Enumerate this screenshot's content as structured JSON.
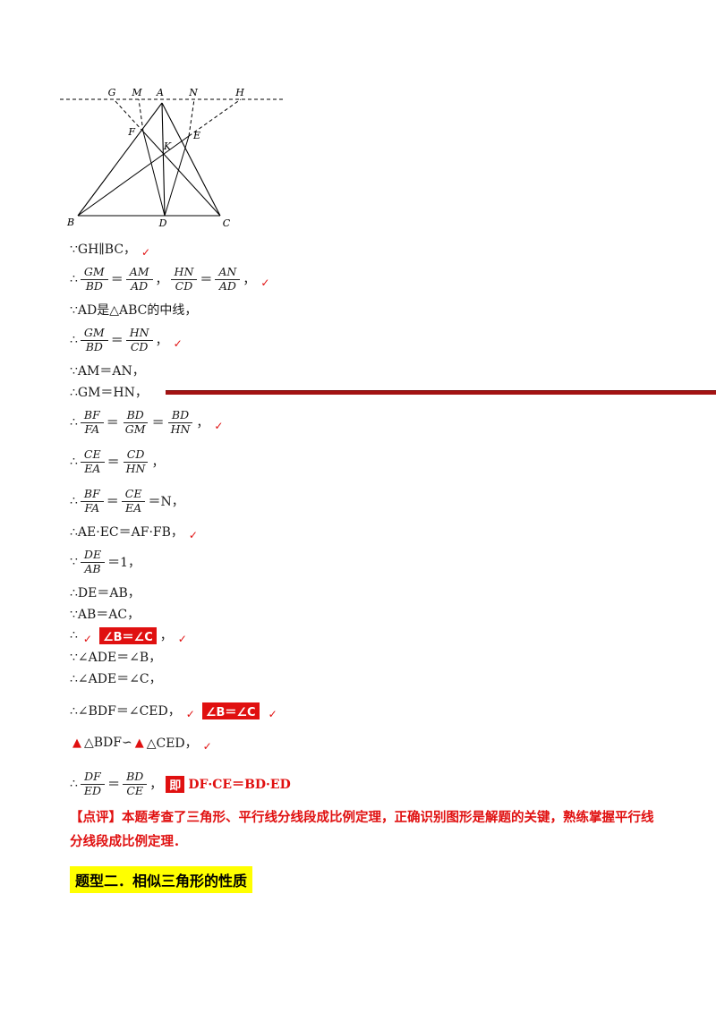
{
  "figure": {
    "labels": {
      "g": "G",
      "m": "M",
      "a": "A",
      "n": "N",
      "h": "H",
      "f": "F",
      "k": "K",
      "e": "E",
      "b": "B",
      "d": "D",
      "c": "C"
    }
  },
  "proof": {
    "mark_glyph": "✓",
    "triangle_glyph": "▲",
    "lines": [
      {
        "segs": [
          [
            "t",
            "∵GH∥BC，"
          ],
          [
            "m"
          ]
        ]
      },
      {
        "segs": [
          [
            "t",
            "∴"
          ],
          [
            "f",
            "GM",
            "BD"
          ],
          [
            "t",
            "＝"
          ],
          [
            "f",
            "AM",
            "AD"
          ],
          [
            "t",
            "，"
          ],
          [
            "f",
            "HN",
            "CD"
          ],
          [
            "t",
            "＝"
          ],
          [
            "f",
            "AN",
            "AD"
          ],
          [
            "t",
            "，"
          ],
          [
            "m"
          ]
        ]
      },
      {
        "segs": [
          [
            "t",
            "∵AD是△ABC的中线，"
          ]
        ]
      },
      {
        "segs": [
          [
            "t",
            "∴"
          ],
          [
            "f",
            "GM",
            "BD"
          ],
          [
            "t",
            "＝"
          ],
          [
            "f",
            "HN",
            "CD"
          ],
          [
            "t",
            "，"
          ],
          [
            "m"
          ]
        ]
      },
      {
        "segs": [
          [
            "t",
            "∵AM＝AN，"
          ]
        ]
      },
      {
        "segs": [
          [
            "t",
            "∴GM＝HN，"
          ]
        ]
      },
      {
        "segs": [
          [
            "t",
            "∴"
          ],
          [
            "f",
            "BF",
            "FA"
          ],
          [
            "t",
            "＝"
          ],
          [
            "f",
            "BD",
            "GM"
          ],
          [
            "t",
            "＝"
          ],
          [
            "f",
            "BD",
            "HN"
          ],
          [
            "t",
            "，"
          ],
          [
            "m"
          ]
        ]
      },
      {
        "segs": [
          [
            "t",
            "∴"
          ],
          [
            "f",
            "CE",
            "EA"
          ],
          [
            "t",
            "＝"
          ],
          [
            "f",
            "CD",
            "HN"
          ],
          [
            "t",
            "，"
          ]
        ]
      },
      {
        "segs": [
          [
            "t",
            "∴"
          ],
          [
            "f",
            "BF",
            "FA"
          ],
          [
            "t",
            "＝"
          ],
          [
            "f",
            "CE",
            "EA"
          ],
          [
            "t",
            "＝N，"
          ]
        ]
      },
      {
        "segs": [
          [
            "t",
            "∴AE·EC＝AF·FB，"
          ],
          [
            "m"
          ]
        ]
      },
      {
        "segs": [
          [
            "t",
            "∵"
          ],
          [
            "f",
            "DE",
            "AB"
          ],
          [
            "t",
            "＝1，"
          ]
        ]
      },
      {
        "segs": [
          [
            "t",
            "∴DE＝AB，"
          ]
        ]
      },
      {
        "segs": [
          [
            "t",
            "∵AB＝AC，"
          ]
        ]
      },
      {
        "segs": [
          [
            "t",
            "∴"
          ],
          [
            "m"
          ],
          [
            "rb",
            "∠B＝∠C"
          ],
          [
            "t",
            "，"
          ],
          [
            "m"
          ]
        ]
      },
      {
        "segs": [
          [
            "t",
            "∵∠ADE＝∠B，"
          ]
        ]
      },
      {
        "segs": [
          [
            "t",
            "∴∠ADE＝∠C，"
          ]
        ]
      },
      {
        "sp": true,
        "segs": [
          [
            "t",
            "∴∠BDF＝∠CED，"
          ],
          [
            "m"
          ],
          [
            "rb",
            "∠B＝∠C"
          ],
          [
            "m"
          ]
        ]
      },
      {
        "sp": true,
        "segs": [
          [
            "rt"
          ],
          [
            "t",
            "△BDF∽"
          ],
          [
            "rt"
          ],
          [
            "t",
            "△CED，"
          ],
          [
            "m"
          ]
        ]
      },
      {
        "sp": true,
        "segs": [
          [
            "t",
            "∴"
          ],
          [
            "f",
            "DF",
            "ED"
          ],
          [
            "t",
            "＝"
          ],
          [
            "f",
            "BD",
            "CE"
          ],
          [
            "t",
            "，"
          ],
          [
            "rb",
            "即"
          ],
          [
            "rx",
            "DF·CE＝BD·ED"
          ]
        ]
      }
    ]
  },
  "comment": {
    "text": "【点评】本题考查了三角形、平行线分线段成比例定理，正确识别图形是解题的关键，熟练掌握平行线分线段成比例定理．"
  },
  "heading": {
    "text": "题型二．相似三角形的性质"
  },
  "colors": {
    "red": "#e01010",
    "rule_red": "#a31212",
    "highlight_yellow": "#ffff00"
  }
}
